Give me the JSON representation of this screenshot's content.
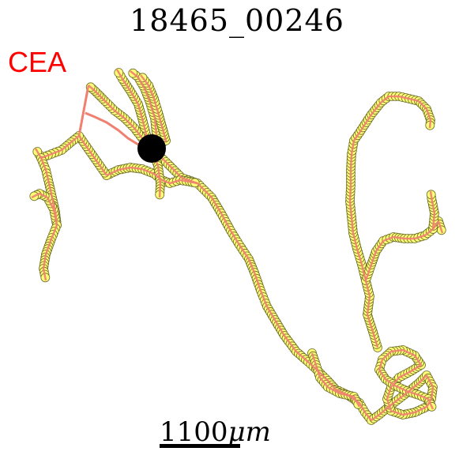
{
  "title": "18465_00246",
  "region_label": "CEA",
  "scale_bar": {
    "value": "1100",
    "unit": "μm"
  },
  "colors": {
    "title": "#000000",
    "region_label": "#ff0000",
    "trace_line": "#f08070",
    "node_fill": "#ffff77",
    "node_edge": "#6b6b2a",
    "soma": "#000000"
  },
  "icons": {
    "soma": "soma-dot"
  }
}
